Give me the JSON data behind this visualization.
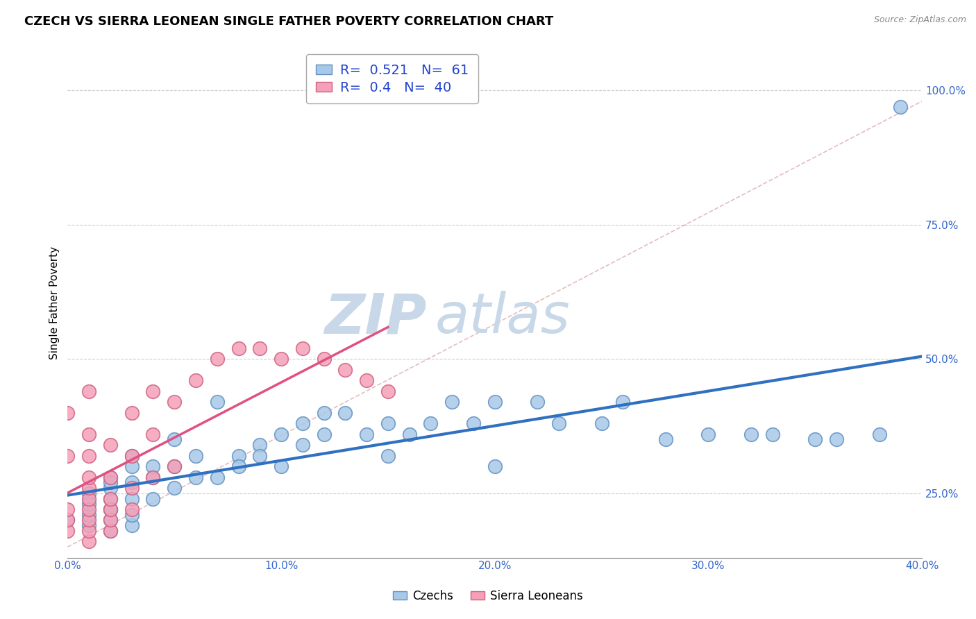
{
  "title": "CZECH VS SIERRA LEONEAN SINGLE FATHER POVERTY CORRELATION CHART",
  "source": "Source: ZipAtlas.com",
  "ylabel": "Single Father Poverty",
  "xlim": [
    0.0,
    0.4
  ],
  "ylim": [
    0.13,
    1.08
  ],
  "xtick_labels": [
    "0.0%",
    "",
    "10.0%",
    "",
    "20.0%",
    "",
    "30.0%",
    "",
    "40.0%"
  ],
  "xtick_vals": [
    0.0,
    0.05,
    0.1,
    0.15,
    0.2,
    0.25,
    0.3,
    0.35,
    0.4
  ],
  "ytick_labels": [
    "25.0%",
    "50.0%",
    "75.0%",
    "100.0%"
  ],
  "ytick_vals": [
    0.25,
    0.5,
    0.75,
    1.0
  ],
  "czech_R": 0.521,
  "czech_N": 61,
  "sierra_R": 0.4,
  "sierra_N": 40,
  "czech_color": "#a8c8e8",
  "sierra_color": "#f4a0b8",
  "czech_edge_color": "#6090c0",
  "sierra_edge_color": "#d06080",
  "czech_line_color": "#3070c0",
  "sierra_line_color": "#e05080",
  "ref_line_color": "#d8a0a8",
  "watermark": "ZIPatlas",
  "background_color": "#ffffff",
  "title_fontsize": 13,
  "watermark_color": "#c8d8e8",
  "grid_color": "#cccccc",
  "czech_x": [
    0.0,
    0.01,
    0.01,
    0.01,
    0.01,
    0.02,
    0.02,
    0.02,
    0.02,
    0.02,
    0.02,
    0.02,
    0.02,
    0.03,
    0.03,
    0.03,
    0.03,
    0.03,
    0.03,
    0.04,
    0.04,
    0.04,
    0.05,
    0.05,
    0.05,
    0.06,
    0.06,
    0.07,
    0.07,
    0.08,
    0.08,
    0.09,
    0.09,
    0.1,
    0.1,
    0.11,
    0.11,
    0.12,
    0.12,
    0.13,
    0.14,
    0.15,
    0.15,
    0.16,
    0.17,
    0.18,
    0.19,
    0.2,
    0.2,
    0.22,
    0.23,
    0.25,
    0.26,
    0.28,
    0.3,
    0.32,
    0.33,
    0.35,
    0.36,
    0.38,
    0.39
  ],
  "czech_y": [
    0.2,
    0.19,
    0.21,
    0.25,
    0.23,
    0.18,
    0.2,
    0.22,
    0.24,
    0.26,
    0.28,
    0.27,
    0.22,
    0.19,
    0.21,
    0.24,
    0.27,
    0.32,
    0.3,
    0.24,
    0.28,
    0.3,
    0.26,
    0.3,
    0.35,
    0.28,
    0.32,
    0.28,
    0.42,
    0.32,
    0.3,
    0.34,
    0.32,
    0.36,
    0.3,
    0.38,
    0.34,
    0.4,
    0.36,
    0.4,
    0.36,
    0.32,
    0.38,
    0.36,
    0.38,
    0.42,
    0.38,
    0.42,
    0.3,
    0.42,
    0.38,
    0.38,
    0.42,
    0.35,
    0.36,
    0.36,
    0.36,
    0.35,
    0.35,
    0.36,
    0.97
  ],
  "sierra_x": [
    0.0,
    0.0,
    0.0,
    0.0,
    0.0,
    0.01,
    0.01,
    0.01,
    0.01,
    0.01,
    0.01,
    0.01,
    0.01,
    0.01,
    0.01,
    0.02,
    0.02,
    0.02,
    0.02,
    0.02,
    0.02,
    0.03,
    0.03,
    0.03,
    0.03,
    0.04,
    0.04,
    0.04,
    0.05,
    0.05,
    0.06,
    0.07,
    0.08,
    0.09,
    0.1,
    0.11,
    0.12,
    0.13,
    0.14,
    0.15
  ],
  "sierra_y": [
    0.18,
    0.2,
    0.22,
    0.32,
    0.4,
    0.16,
    0.18,
    0.2,
    0.22,
    0.24,
    0.26,
    0.28,
    0.32,
    0.36,
    0.44,
    0.18,
    0.2,
    0.22,
    0.24,
    0.28,
    0.34,
    0.22,
    0.26,
    0.32,
    0.4,
    0.28,
    0.36,
    0.44,
    0.3,
    0.42,
    0.46,
    0.5,
    0.52,
    0.52,
    0.5,
    0.52,
    0.5,
    0.48,
    0.46,
    0.44
  ]
}
